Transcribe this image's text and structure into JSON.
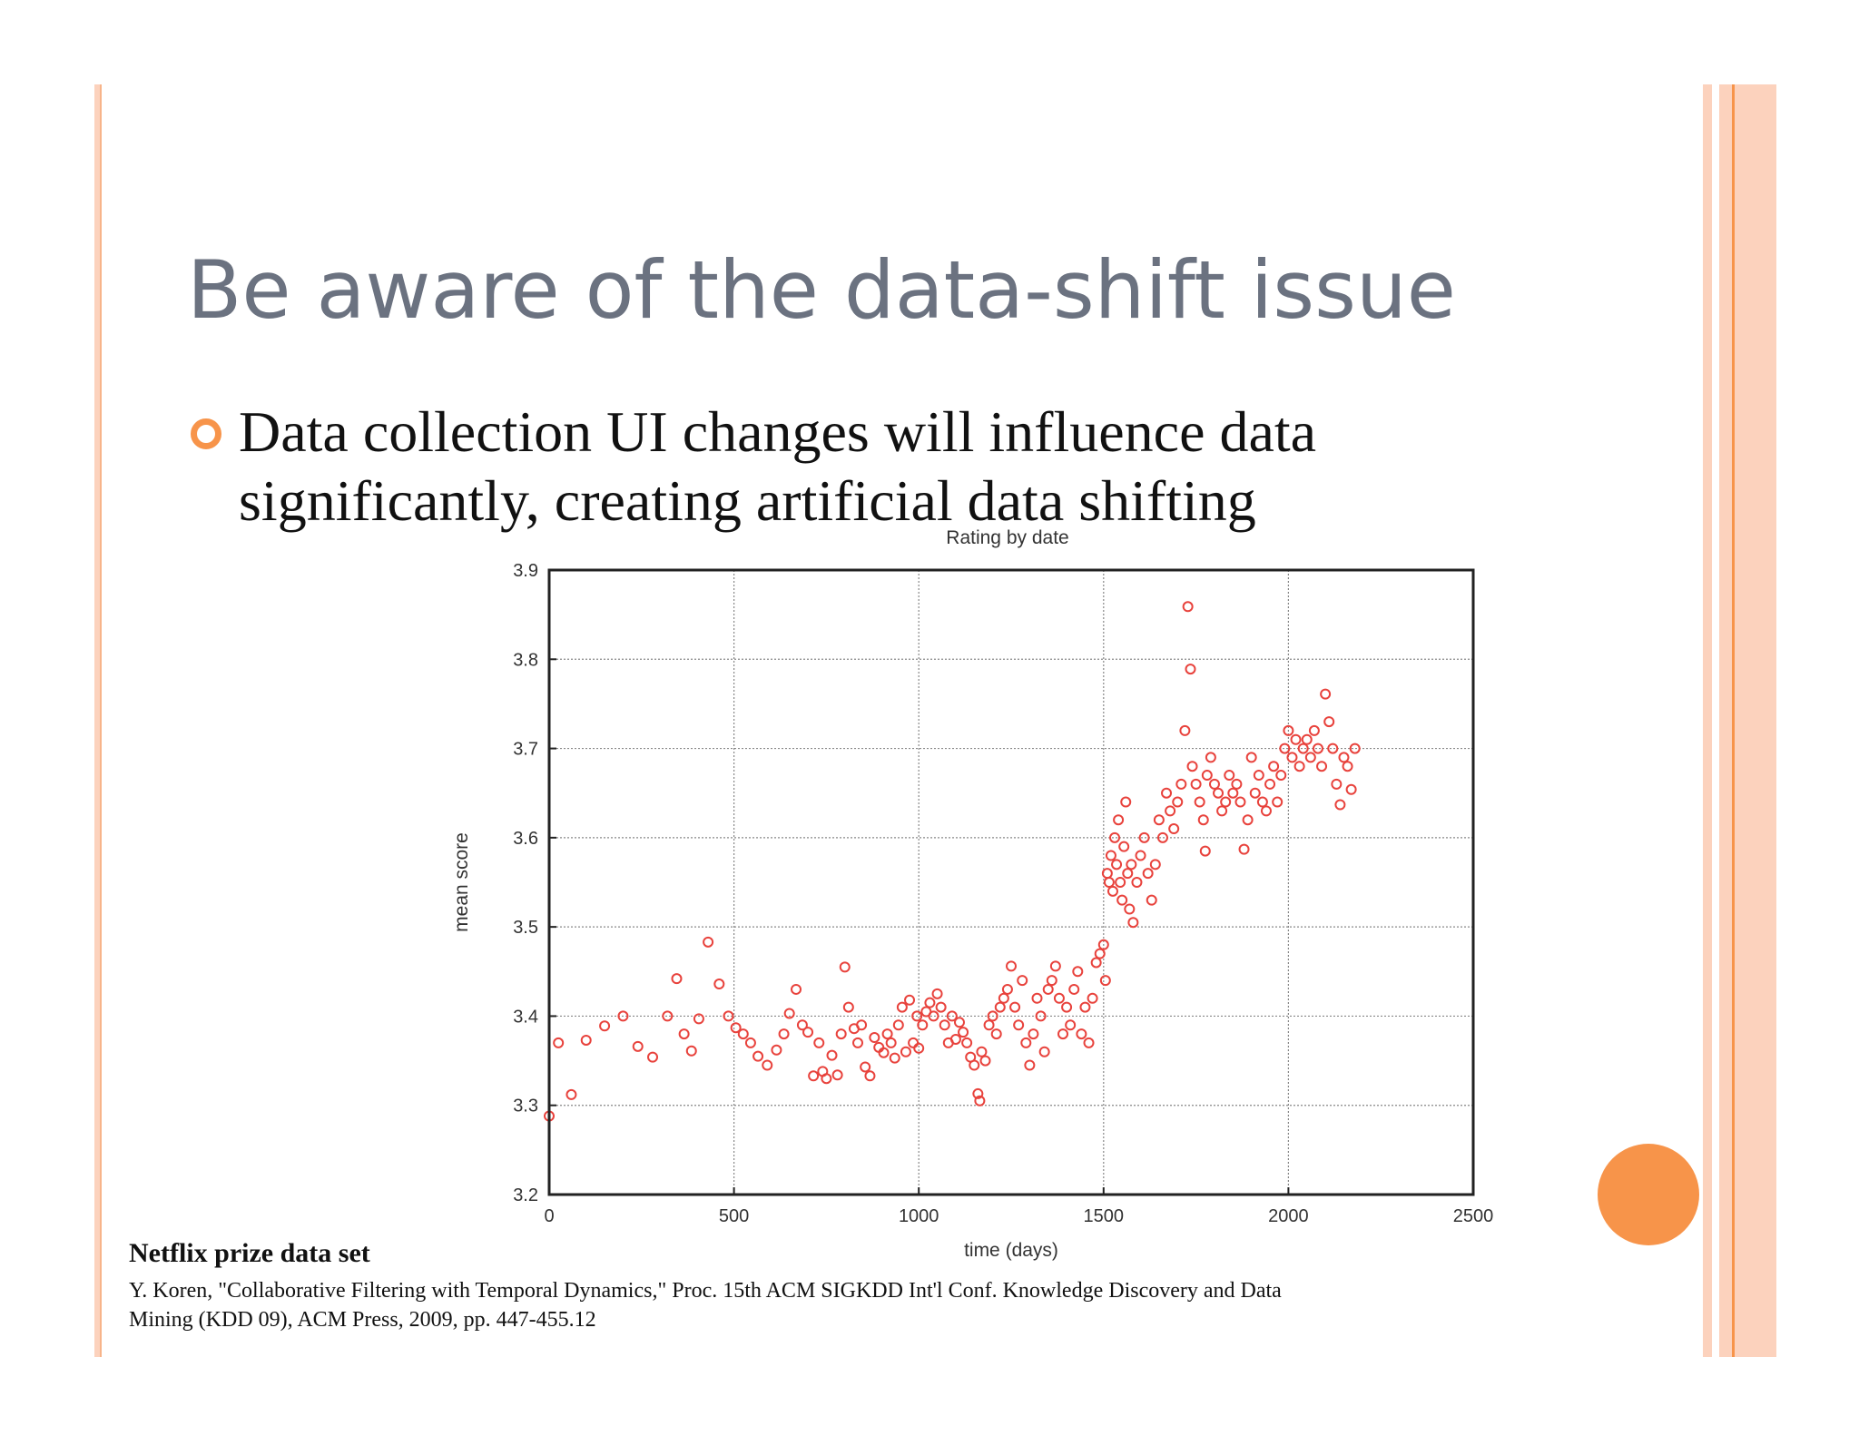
{
  "slide": {
    "title": "Be aware of the data-shift issue",
    "bullet_lines": [
      "Data collection UI changes will influence data",
      "significantly, creating artificial data shifting"
    ],
    "source_title": "Netflix prize data set",
    "source_ref_lines": [
      "Y. Koren, \"Collaborative Filtering with Temporal Dynamics,\" Proc. 15th ACM SIGKDD Int'l Conf. Knowledge Discovery and Data",
      "Mining (KDD 09), ACM Press, 2009, pp. 447-455.12"
    ],
    "colors": {
      "title": "#6b7280",
      "accent_orange": "#f7944a",
      "border_peach": "#fcd2bd",
      "marker_red": "#e8423c"
    }
  },
  "chart_data": {
    "type": "scatter",
    "title": "Rating by date",
    "xlabel": "time (days)",
    "ylabel": "mean score",
    "xlim": [
      0,
      2500
    ],
    "ylim": [
      3.2,
      3.9
    ],
    "xticks": [
      0,
      500,
      1000,
      1500,
      2000,
      2500
    ],
    "yticks": [
      3.2,
      3.3,
      3.4,
      3.5,
      3.6,
      3.7,
      3.8,
      3.9
    ],
    "grid": true,
    "marker": "open-circle",
    "series": [
      {
        "color": "#e8423c",
        "points": [
          [
            0,
            3.288
          ],
          [
            25,
            3.37
          ],
          [
            60,
            3.312
          ],
          [
            100,
            3.373
          ],
          [
            150,
            3.389
          ],
          [
            200,
            3.4
          ],
          [
            240,
            3.366
          ],
          [
            280,
            3.354
          ],
          [
            320,
            3.4
          ],
          [
            345,
            3.442
          ],
          [
            365,
            3.38
          ],
          [
            385,
            3.361
          ],
          [
            405,
            3.397
          ],
          [
            430,
            3.483
          ],
          [
            460,
            3.436
          ],
          [
            485,
            3.4
          ],
          [
            505,
            3.387
          ],
          [
            525,
            3.38
          ],
          [
            545,
            3.37
          ],
          [
            565,
            3.355
          ],
          [
            590,
            3.345
          ],
          [
            615,
            3.362
          ],
          [
            635,
            3.38
          ],
          [
            650,
            3.403
          ],
          [
            668,
            3.43
          ],
          [
            685,
            3.39
          ],
          [
            700,
            3.382
          ],
          [
            715,
            3.333
          ],
          [
            730,
            3.37
          ],
          [
            740,
            3.338
          ],
          [
            750,
            3.33
          ],
          [
            765,
            3.356
          ],
          [
            780,
            3.334
          ],
          [
            790,
            3.38
          ],
          [
            800,
            3.455
          ],
          [
            810,
            3.41
          ],
          [
            825,
            3.386
          ],
          [
            835,
            3.37
          ],
          [
            845,
            3.39
          ],
          [
            855,
            3.343
          ],
          [
            868,
            3.333
          ],
          [
            880,
            3.376
          ],
          [
            892,
            3.365
          ],
          [
            905,
            3.359
          ],
          [
            915,
            3.38
          ],
          [
            925,
            3.37
          ],
          [
            935,
            3.353
          ],
          [
            945,
            3.39
          ],
          [
            955,
            3.41
          ],
          [
            965,
            3.36
          ],
          [
            975,
            3.418
          ],
          [
            985,
            3.37
          ],
          [
            995,
            3.4
          ],
          [
            1000,
            3.364
          ],
          [
            1010,
            3.39
          ],
          [
            1020,
            3.405
          ],
          [
            1030,
            3.415
          ],
          [
            1040,
            3.4
          ],
          [
            1050,
            3.425
          ],
          [
            1060,
            3.41
          ],
          [
            1070,
            3.39
          ],
          [
            1080,
            3.37
          ],
          [
            1090,
            3.4
          ],
          [
            1100,
            3.374
          ],
          [
            1110,
            3.393
          ],
          [
            1120,
            3.382
          ],
          [
            1130,
            3.37
          ],
          [
            1140,
            3.354
          ],
          [
            1150,
            3.345
          ],
          [
            1160,
            3.313
          ],
          [
            1165,
            3.305
          ],
          [
            1170,
            3.36
          ],
          [
            1180,
            3.35
          ],
          [
            1190,
            3.39
          ],
          [
            1200,
            3.4
          ],
          [
            1210,
            3.38
          ],
          [
            1220,
            3.41
          ],
          [
            1230,
            3.42
          ],
          [
            1240,
            3.43
          ],
          [
            1250,
            3.456
          ],
          [
            1260,
            3.41
          ],
          [
            1270,
            3.39
          ],
          [
            1280,
            3.44
          ],
          [
            1290,
            3.37
          ],
          [
            1300,
            3.345
          ],
          [
            1310,
            3.38
          ],
          [
            1320,
            3.42
          ],
          [
            1330,
            3.4
          ],
          [
            1340,
            3.36
          ],
          [
            1350,
            3.43
          ],
          [
            1360,
            3.44
          ],
          [
            1370,
            3.456
          ],
          [
            1380,
            3.42
          ],
          [
            1390,
            3.38
          ],
          [
            1400,
            3.41
          ],
          [
            1410,
            3.39
          ],
          [
            1420,
            3.43
          ],
          [
            1430,
            3.45
          ],
          [
            1440,
            3.38
          ],
          [
            1450,
            3.41
          ],
          [
            1460,
            3.37
          ],
          [
            1470,
            3.42
          ],
          [
            1480,
            3.46
          ],
          [
            1490,
            3.47
          ],
          [
            1500,
            3.48
          ],
          [
            1505,
            3.44
          ],
          [
            1510,
            3.56
          ],
          [
            1515,
            3.55
          ],
          [
            1520,
            3.58
          ],
          [
            1525,
            3.54
          ],
          [
            1530,
            3.6
          ],
          [
            1535,
            3.57
          ],
          [
            1540,
            3.62
          ],
          [
            1545,
            3.55
          ],
          [
            1550,
            3.53
          ],
          [
            1555,
            3.59
          ],
          [
            1560,
            3.64
          ],
          [
            1565,
            3.56
          ],
          [
            1570,
            3.52
          ],
          [
            1575,
            3.57
          ],
          [
            1580,
            3.505
          ],
          [
            1590,
            3.55
          ],
          [
            1600,
            3.58
          ],
          [
            1610,
            3.6
          ],
          [
            1620,
            3.56
          ],
          [
            1630,
            3.53
          ],
          [
            1640,
            3.57
          ],
          [
            1650,
            3.62
          ],
          [
            1660,
            3.6
          ],
          [
            1670,
            3.65
          ],
          [
            1680,
            3.63
          ],
          [
            1690,
            3.61
          ],
          [
            1700,
            3.64
          ],
          [
            1710,
            3.66
          ],
          [
            1720,
            3.72
          ],
          [
            1728,
            3.859
          ],
          [
            1735,
            3.789
          ],
          [
            1740,
            3.68
          ],
          [
            1750,
            3.66
          ],
          [
            1760,
            3.64
          ],
          [
            1770,
            3.62
          ],
          [
            1775,
            3.585
          ],
          [
            1780,
            3.67
          ],
          [
            1790,
            3.69
          ],
          [
            1800,
            3.66
          ],
          [
            1810,
            3.65
          ],
          [
            1820,
            3.63
          ],
          [
            1830,
            3.64
          ],
          [
            1840,
            3.67
          ],
          [
            1850,
            3.65
          ],
          [
            1860,
            3.66
          ],
          [
            1870,
            3.64
          ],
          [
            1880,
            3.587
          ],
          [
            1890,
            3.62
          ],
          [
            1900,
            3.69
          ],
          [
            1910,
            3.65
          ],
          [
            1920,
            3.67
          ],
          [
            1930,
            3.64
          ],
          [
            1940,
            3.63
          ],
          [
            1950,
            3.66
          ],
          [
            1960,
            3.68
          ],
          [
            1970,
            3.64
          ],
          [
            1980,
            3.67
          ],
          [
            1990,
            3.7
          ],
          [
            2000,
            3.72
          ],
          [
            2010,
            3.69
          ],
          [
            2020,
            3.71
          ],
          [
            2030,
            3.68
          ],
          [
            2040,
            3.7
          ],
          [
            2050,
            3.71
          ],
          [
            2060,
            3.69
          ],
          [
            2070,
            3.72
          ],
          [
            2080,
            3.7
          ],
          [
            2090,
            3.68
          ],
          [
            2100,
            3.761
          ],
          [
            2110,
            3.73
          ],
          [
            2120,
            3.7
          ],
          [
            2130,
            3.66
          ],
          [
            2140,
            3.637
          ],
          [
            2150,
            3.69
          ],
          [
            2160,
            3.68
          ],
          [
            2170,
            3.654
          ],
          [
            2180,
            3.7
          ]
        ]
      }
    ]
  }
}
